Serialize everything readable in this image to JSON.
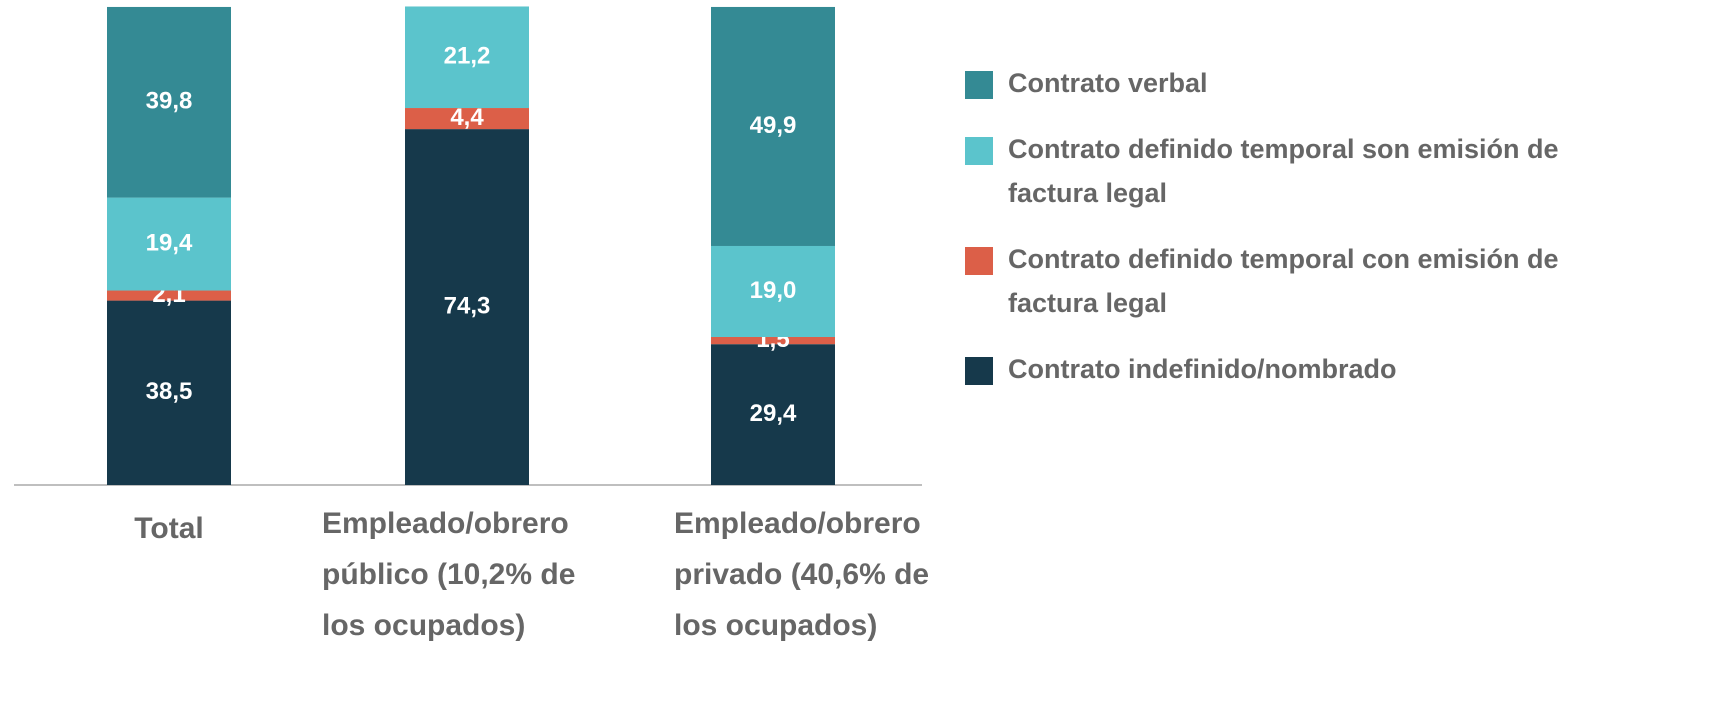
{
  "chart_data": {
    "type": "stacked_bar",
    "categories": [
      "Total",
      "Empleado/obrero público (10,2% de los ocupados)",
      "Empleado/obrero privado (40,6% de los ocupados)"
    ],
    "series": [
      {
        "name": "Contrato verbal",
        "color": "#348a94",
        "values": [
          39.8,
          null,
          49.9
        ]
      },
      {
        "name": "Contrato definido temporal son emisión de factura legal",
        "color": "#5bc4cc",
        "values": [
          19.4,
          21.2,
          19.0
        ]
      },
      {
        "name": "Contrato definido temporal con emisión de factura legal",
        "color": "#dc5f48",
        "values": [
          2.1,
          4.4,
          1.5
        ]
      },
      {
        "name": "Contrato indefinido/nombrado",
        "color": "#16394b",
        "values": [
          38.5,
          74.3,
          29.4
        ]
      }
    ],
    "value_labels": [
      [
        "39,8",
        null,
        "49,9"
      ],
      [
        "19,4",
        "21,2",
        "19,0"
      ],
      [
        "2,1",
        "4,4",
        "1,5"
      ],
      [
        "38,5",
        "74,3",
        "29,4"
      ]
    ],
    "ylim": [
      0,
      100
    ],
    "legend": "right"
  }
}
